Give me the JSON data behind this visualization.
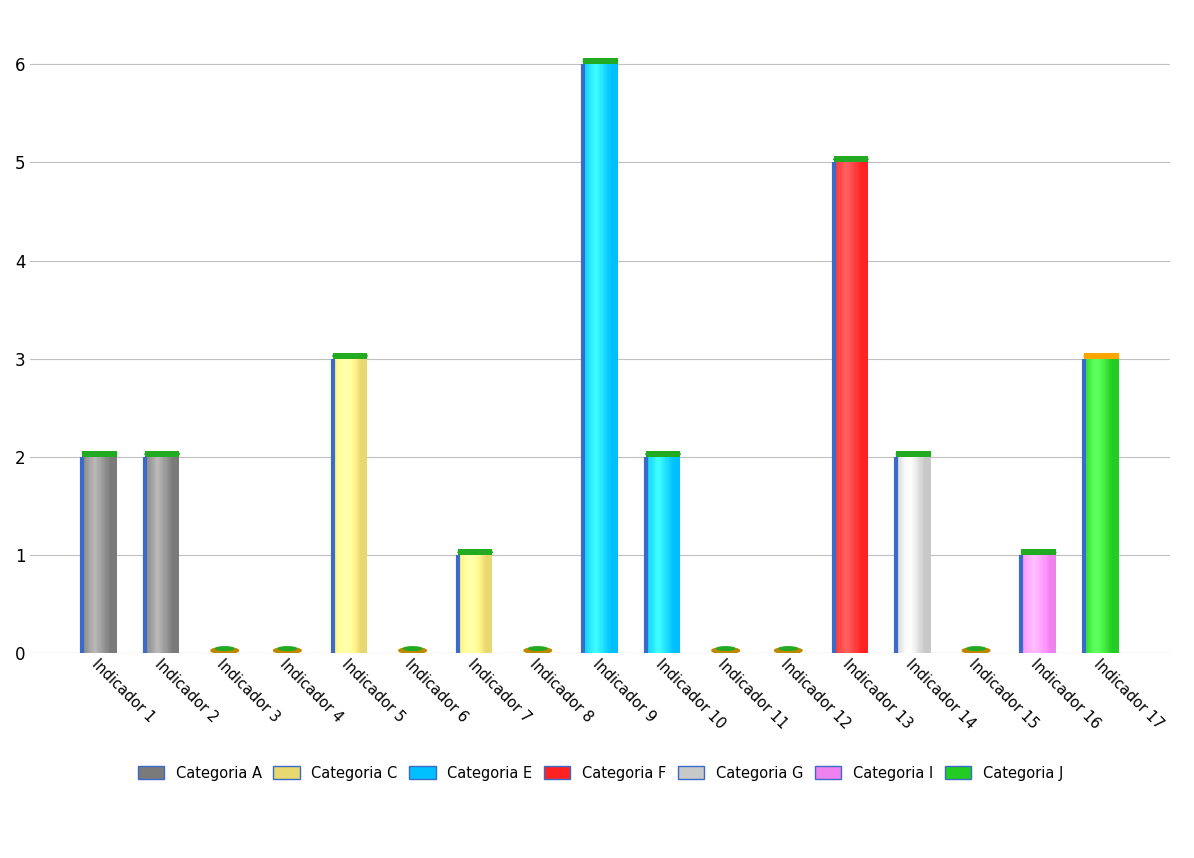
{
  "indicators": [
    "Indicador 1",
    "Indicador 2",
    "Indicador 3",
    "Indicador 4",
    "Indicador 5",
    "Indicador 6",
    "Indicador 7",
    "Indicador 8",
    "Indicador 9",
    "Indicador 10",
    "Indicador 11",
    "Indicador 12",
    "Indicador 13",
    "Indicador 14",
    "Indicador 15",
    "Indicador 16",
    "Indicador 17"
  ],
  "bar_data": [
    {
      "indicator": "Indicador 1",
      "value": 2.0,
      "base_color": "#7a7a7a",
      "edge_color": "#3a6bc9",
      "cap_color": "#22aa22"
    },
    {
      "indicator": "Indicador 2",
      "value": 2.0,
      "base_color": "#7a7a7a",
      "edge_color": "#3a6bc9",
      "cap_color": "#22aa22"
    },
    {
      "indicator": "Indicador 3",
      "value": 0.07,
      "base_color": "#22aa22",
      "edge_color": "#22aa22",
      "cap_color": "#22aa22"
    },
    {
      "indicator": "Indicador 4",
      "value": 0.07,
      "base_color": "#22aa22",
      "edge_color": "#22aa22",
      "cap_color": "#22aa22"
    },
    {
      "indicator": "Indicador 5",
      "value": 3.0,
      "base_color": "#e8d870",
      "edge_color": "#3a6bc9",
      "cap_color": "#22aa22"
    },
    {
      "indicator": "Indicador 6",
      "value": 0.07,
      "base_color": "#22aa22",
      "edge_color": "#22aa22",
      "cap_color": "#22aa22"
    },
    {
      "indicator": "Indicador 7",
      "value": 1.0,
      "base_color": "#e8d870",
      "edge_color": "#3a6bc9",
      "cap_color": "#22aa22"
    },
    {
      "indicator": "Indicador 8",
      "value": 0.07,
      "base_color": "#22aa22",
      "edge_color": "#22aa22",
      "cap_color": "#22aa22"
    },
    {
      "indicator": "Indicador 9",
      "value": 6.0,
      "base_color": "#00BFFF",
      "edge_color": "#3a6bc9",
      "cap_color": "#22aa22"
    },
    {
      "indicator": "Indicador 10",
      "value": 2.0,
      "base_color": "#00BFFF",
      "edge_color": "#3a6bc9",
      "cap_color": "#22aa22"
    },
    {
      "indicator": "Indicador 11",
      "value": 0.07,
      "base_color": "#22aa22",
      "edge_color": "#22aa22",
      "cap_color": "#22aa22"
    },
    {
      "indicator": "Indicador 12",
      "value": 0.07,
      "base_color": "#22aa22",
      "edge_color": "#22aa22",
      "cap_color": "#22aa22"
    },
    {
      "indicator": "Indicador 13",
      "value": 5.0,
      "base_color": "#FF2222",
      "edge_color": "#3a6bc9",
      "cap_color": "#22aa22"
    },
    {
      "indicator": "Indicador 14",
      "value": 2.0,
      "base_color": "#C8C8C8",
      "edge_color": "#3a6bc9",
      "cap_color": "#22aa22"
    },
    {
      "indicator": "Indicador 15",
      "value": 0.07,
      "base_color": "#22aa22",
      "edge_color": "#22aa22",
      "cap_color": "#22aa22"
    },
    {
      "indicator": "Indicador 16",
      "value": 1.0,
      "base_color": "#EE82EE",
      "edge_color": "#3a6bc9",
      "cap_color": "#22aa22"
    },
    {
      "indicator": "Indicador 17",
      "value": 3.0,
      "base_color": "#22CC22",
      "edge_color": "#3a6bc9",
      "cap_color": "#FFA500"
    }
  ],
  "categories": {
    "Categoria A": {
      "color": "#7a7a7a",
      "edge_color": "#3a6bc9"
    },
    "Categoria C": {
      "color": "#e8d870",
      "edge_color": "#3a6bc9"
    },
    "Categoria E": {
      "color": "#00BFFF",
      "edge_color": "#3a6bc9"
    },
    "Categoria F": {
      "color": "#FF2222",
      "edge_color": "#3a6bc9"
    },
    "Categoria G": {
      "color": "#C8C8C8",
      "edge_color": "#3a6bc9"
    },
    "Categoria I": {
      "color": "#EE82EE",
      "edge_color": "#3a6bc9"
    },
    "Categoria J": {
      "color": "#22CC22",
      "edge_color": "#3a6bc9"
    }
  },
  "cat_order": [
    "Categoria A",
    "Categoria C",
    "Categoria E",
    "Categoria F",
    "Categoria G",
    "Categoria I",
    "Categoria J"
  ],
  "ylim": [
    0,
    6.5
  ],
  "yticks": [
    0,
    1,
    2,
    3,
    4,
    5,
    6
  ],
  "background_color": "#FFFFFF",
  "grid_color": "#C0C0C0",
  "bar_width": 0.55,
  "edge_width": 3.0
}
